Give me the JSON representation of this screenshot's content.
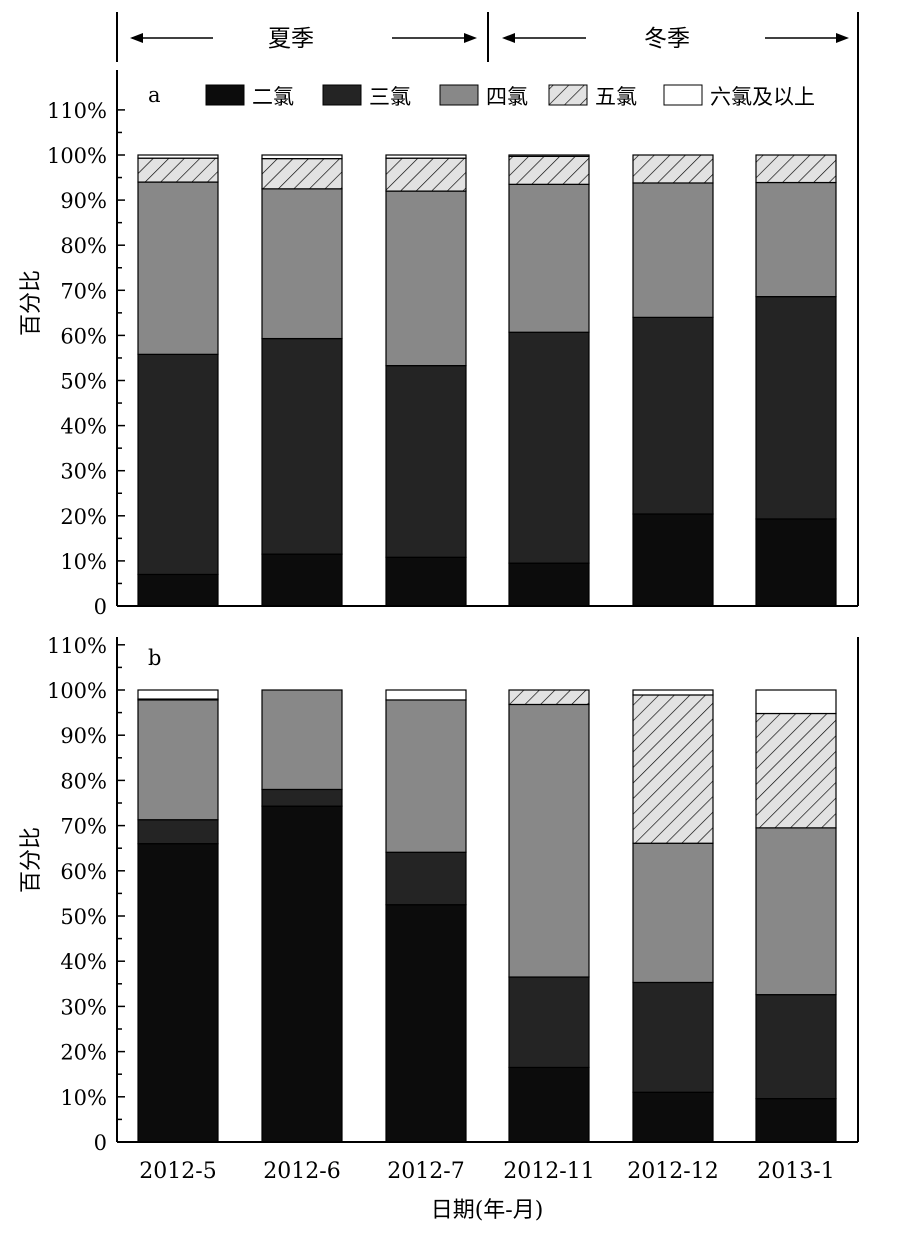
{
  "chart_data": [
    {
      "type": "bar",
      "stacked": true,
      "panel_label": "a",
      "ylabel": "百分比",
      "ylim": [
        0,
        110
      ],
      "yticks": [
        "0",
        "10%",
        "20%",
        "30%",
        "40%",
        "50%",
        "60%",
        "70%",
        "80%",
        "90%",
        "100%",
        "110%"
      ],
      "categories": [
        "2012-5",
        "2012-6",
        "2012-7",
        "2012-11",
        "2012-12",
        "2013-1"
      ],
      "series": [
        {
          "name": "二氯",
          "values": [
            7,
            11.5,
            10.8,
            9.5,
            20.4,
            19.3
          ]
        },
        {
          "name": "三氯",
          "values": [
            48.8,
            47.8,
            42.5,
            51.2,
            43.6,
            49.3
          ]
        },
        {
          "name": "四氯",
          "values": [
            38.2,
            33.2,
            38.7,
            32.8,
            29.8,
            25.3
          ]
        },
        {
          "name": "五氯",
          "values": [
            5.3,
            6.7,
            7.3,
            6.2,
            6.2,
            6.1
          ]
        },
        {
          "name": "六氯及以上",
          "values": [
            0.7,
            0.8,
            0.7,
            0.3,
            0,
            0
          ]
        }
      ]
    },
    {
      "type": "bar",
      "stacked": true,
      "panel_label": "b",
      "ylabel": "百分比",
      "xlabel": "日期(年-月)",
      "ylim": [
        0,
        110
      ],
      "yticks": [
        "0",
        "10%",
        "20%",
        "30%",
        "40%",
        "50%",
        "60%",
        "70%",
        "80%",
        "90%",
        "100%",
        "110%"
      ],
      "categories": [
        "2012-5",
        "2012-6",
        "2012-7",
        "2012-11",
        "2012-12",
        "2013-1"
      ],
      "series": [
        {
          "name": "二氯",
          "values": [
            66,
            74.3,
            52.5,
            16.5,
            11,
            9.6
          ]
        },
        {
          "name": "三氯",
          "values": [
            5.3,
            3.7,
            11.6,
            20,
            24.3,
            23
          ]
        },
        {
          "name": "四氯",
          "values": [
            26.5,
            22,
            33.7,
            60.3,
            30.8,
            36.9
          ]
        },
        {
          "name": "五氯",
          "values": [
            0.2,
            0,
            0,
            3.2,
            32.8,
            25.3
          ]
        },
        {
          "name": "六氯及以上",
          "values": [
            2,
            0,
            2.2,
            0,
            1.1,
            5.2
          ]
        }
      ]
    }
  ],
  "seasons": {
    "summer": "夏季",
    "winter": "冬季"
  },
  "legend": [
    "二氯",
    "三氯",
    "四氯",
    "五氯",
    "六氯及以上"
  ],
  "colors": [
    "#0c0c0c",
    "#242424",
    "#888888",
    "#e2e2e2",
    "#ffffff"
  ]
}
